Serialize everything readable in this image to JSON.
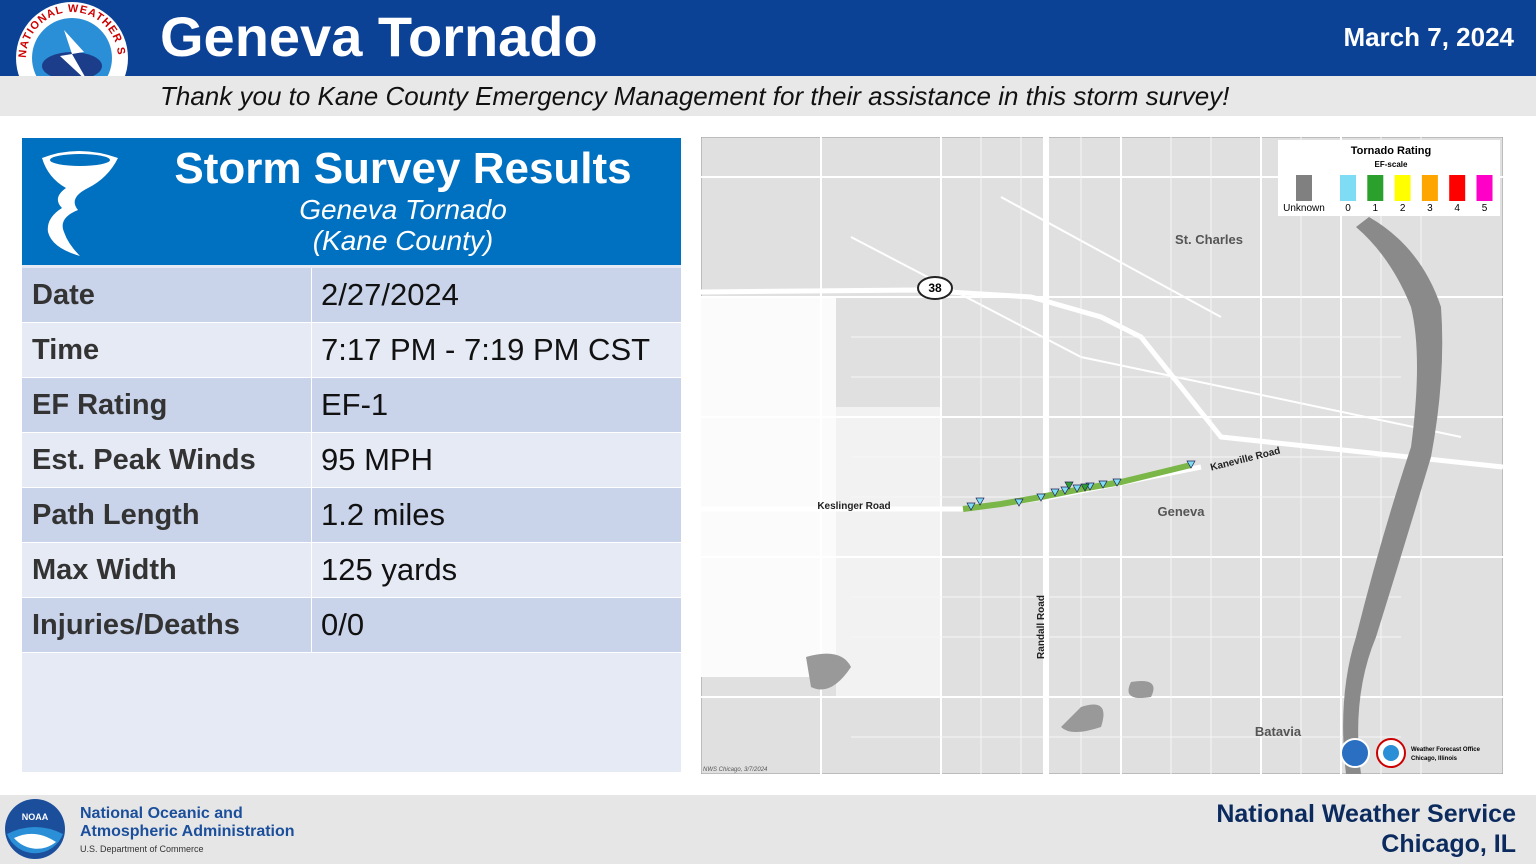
{
  "header": {
    "title": "Geneva Tornado",
    "date": "March 7, 2024",
    "subtitle": "Thank you to Kane County Emergency Management for their assistance in this storm survey!",
    "logo_text": "NATIONAL WEATHER SERVICE"
  },
  "survey": {
    "title": "Storm Survey Results",
    "name": "Geneva Tornado",
    "county": "(Kane County)",
    "rows": [
      [
        "Date",
        "2/27/2024"
      ],
      [
        "Time",
        "7:17 PM - 7:19 PM CST"
      ],
      [
        "EF Rating",
        "EF-1"
      ],
      [
        "Est. Peak Winds",
        "95 MPH"
      ],
      [
        "Path Length",
        "1.2 miles"
      ],
      [
        "Max Width",
        "125 yards"
      ],
      [
        "Injuries/Deaths",
        "0/0"
      ]
    ]
  },
  "map": {
    "legend_title": "Tornado Rating",
    "legend_subtitle": "EF-scale",
    "legend": [
      {
        "label": "Unknown",
        "color": "#808080"
      },
      {
        "label": "0",
        "color": "#7fdcf5"
      },
      {
        "label": "1",
        "color": "#2ca02c"
      },
      {
        "label": "2",
        "color": "#ffff00"
      },
      {
        "label": "3",
        "color": "#ffa500"
      },
      {
        "label": "4",
        "color": "#ff0000"
      },
      {
        "label": "5",
        "color": "#ff00c8"
      }
    ],
    "places": {
      "st_charles": "St. Charles",
      "geneva": "Geneva",
      "batavia": "Batavia"
    },
    "roads": {
      "keslinger": "Keslinger Road",
      "kaneville": "Kaneville Road",
      "randall": "Randall Road",
      "route": "38"
    },
    "credit": "NWS Chicago, 3/7/2024",
    "wfo": "Weather Forecast Office",
    "wfo_location": "Chicago, Illinois"
  },
  "footer": {
    "noaa_line1": "National Oceanic and",
    "noaa_line2": "Atmospheric Administration",
    "noaa_dept": "U.S. Department of Commerce",
    "nws": "National Weather Service",
    "office": "Chicago, IL",
    "noaa_logo": "NOAA"
  }
}
